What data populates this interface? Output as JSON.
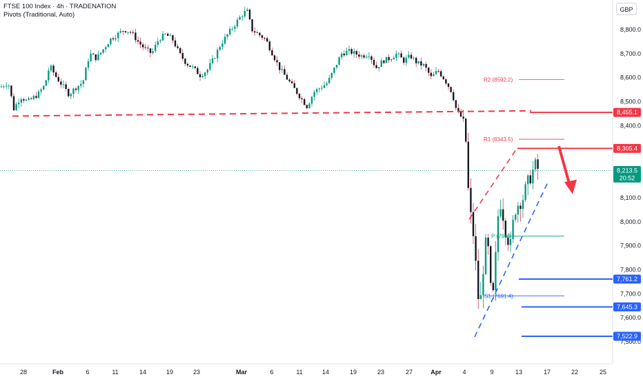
{
  "header": {
    "title": "FTSE 100 Index · 4h · TRADENATION",
    "indicator": "Pivots (Traditional, Auto)"
  },
  "currency_button": "GBP",
  "price_badges": [
    {
      "label": "8,455.1",
      "color": "#f23645"
    },
    {
      "label": "8,305.4",
      "color": "#f23645"
    },
    {
      "label": "8,213.5",
      "sub": "20:52",
      "color": "#089981"
    },
    {
      "label": "7,761.2",
      "color": "#2962ff"
    },
    {
      "label": "7,645.3",
      "color": "#2962ff"
    },
    {
      "label": "7,522.9",
      "color": "#2962ff"
    }
  ],
  "pivot_labels": [
    {
      "text": "R2 (8592.2)",
      "price": 8592.2,
      "color": "#f23645"
    },
    {
      "text": "R1 (8343.5)",
      "price": 8343.5,
      "color": "#f23645"
    },
    {
      "text": "P (7940",
      "price": 7940,
      "color": "#089981"
    },
    {
      "text": "S1 (7691.4)",
      "price": 7691.4,
      "color": "#2962ff"
    }
  ],
  "chart_data": {
    "type": "candlestick",
    "title": "FTSE 100 Index · 4h · TRADENATION",
    "y_ticks": [
      "8,800.0",
      "8,700.0",
      "8,600.0",
      "8,500.0",
      "8,400.0",
      "8,300.0",
      "8,200.0",
      "8,100.0",
      "8,000.0",
      "7,900.0",
      "7,800.0",
      "7,700.0",
      "7,600.0",
      "7,500.0"
    ],
    "x_ticks": [
      "28",
      "Feb",
      "6",
      "11",
      "14",
      "19",
      "23",
      "Mar",
      "6",
      "11",
      "14",
      "19",
      "23",
      "27",
      "Apr",
      "4",
      "9",
      "13",
      "17",
      "22",
      "25"
    ],
    "ylim": [
      7480,
      8900
    ],
    "last_price": 8213.5,
    "horizontal_levels": [
      8455.1,
      8305.4,
      7761.2,
      7645.3,
      7522.9
    ],
    "close_path": [
      [
        0,
        8560
      ],
      [
        12,
        8580
      ],
      [
        20,
        8470
      ],
      [
        30,
        8520
      ],
      [
        40,
        8500
      ],
      [
        55,
        8530
      ],
      [
        65,
        8570
      ],
      [
        72,
        8650
      ],
      [
        82,
        8600
      ],
      [
        90,
        8570
      ],
      [
        100,
        8530
      ],
      [
        110,
        8560
      ],
      [
        120,
        8580
      ],
      [
        130,
        8700
      ],
      [
        140,
        8680
      ],
      [
        150,
        8720
      ],
      [
        160,
        8760
      ],
      [
        170,
        8780
      ],
      [
        180,
        8800
      ],
      [
        190,
        8790
      ],
      [
        200,
        8750
      ],
      [
        210,
        8720
      ],
      [
        220,
        8700
      ],
      [
        230,
        8760
      ],
      [
        240,
        8780
      ],
      [
        250,
        8760
      ],
      [
        260,
        8700
      ],
      [
        270,
        8660
      ],
      [
        280,
        8640
      ],
      [
        290,
        8610
      ],
      [
        300,
        8630
      ],
      [
        310,
        8680
      ],
      [
        320,
        8740
      ],
      [
        330,
        8780
      ],
      [
        340,
        8820
      ],
      [
        350,
        8860
      ],
      [
        358,
        8880
      ],
      [
        365,
        8800
      ],
      [
        375,
        8780
      ],
      [
        385,
        8760
      ],
      [
        395,
        8700
      ],
      [
        405,
        8640
      ],
      [
        415,
        8600
      ],
      [
        425,
        8560
      ],
      [
        435,
        8520
      ],
      [
        445,
        8480
      ],
      [
        455,
        8540
      ],
      [
        465,
        8560
      ],
      [
        475,
        8580
      ],
      [
        485,
        8640
      ],
      [
        495,
        8700
      ],
      [
        505,
        8710
      ],
      [
        515,
        8700
      ],
      [
        525,
        8690
      ],
      [
        535,
        8700
      ],
      [
        545,
        8640
      ],
      [
        555,
        8670
      ],
      [
        565,
        8680
      ],
      [
        575,
        8700
      ],
      [
        585,
        8670
      ],
      [
        595,
        8690
      ],
      [
        605,
        8660
      ],
      [
        615,
        8650
      ],
      [
        625,
        8600
      ],
      [
        635,
        8630
      ],
      [
        645,
        8590
      ],
      [
        655,
        8540
      ],
      [
        662,
        8460
      ],
      [
        670,
        8430
      ],
      [
        676,
        8320
      ],
      [
        680,
        8050
      ],
      [
        684,
        8000
      ],
      [
        688,
        7900
      ],
      [
        692,
        7700
      ],
      [
        696,
        7650
      ],
      [
        700,
        7800
      ],
      [
        706,
        7950
      ],
      [
        712,
        7680
      ],
      [
        716,
        7700
      ],
      [
        720,
        7950
      ],
      [
        724,
        8100
      ],
      [
        728,
        8050
      ],
      [
        734,
        7950
      ],
      [
        740,
        7900
      ],
      [
        746,
        8050
      ],
      [
        752,
        8080
      ],
      [
        758,
        8100
      ],
      [
        764,
        8150
      ],
      [
        770,
        8200
      ],
      [
        776,
        8230
      ],
      [
        782,
        8213
      ]
    ]
  }
}
